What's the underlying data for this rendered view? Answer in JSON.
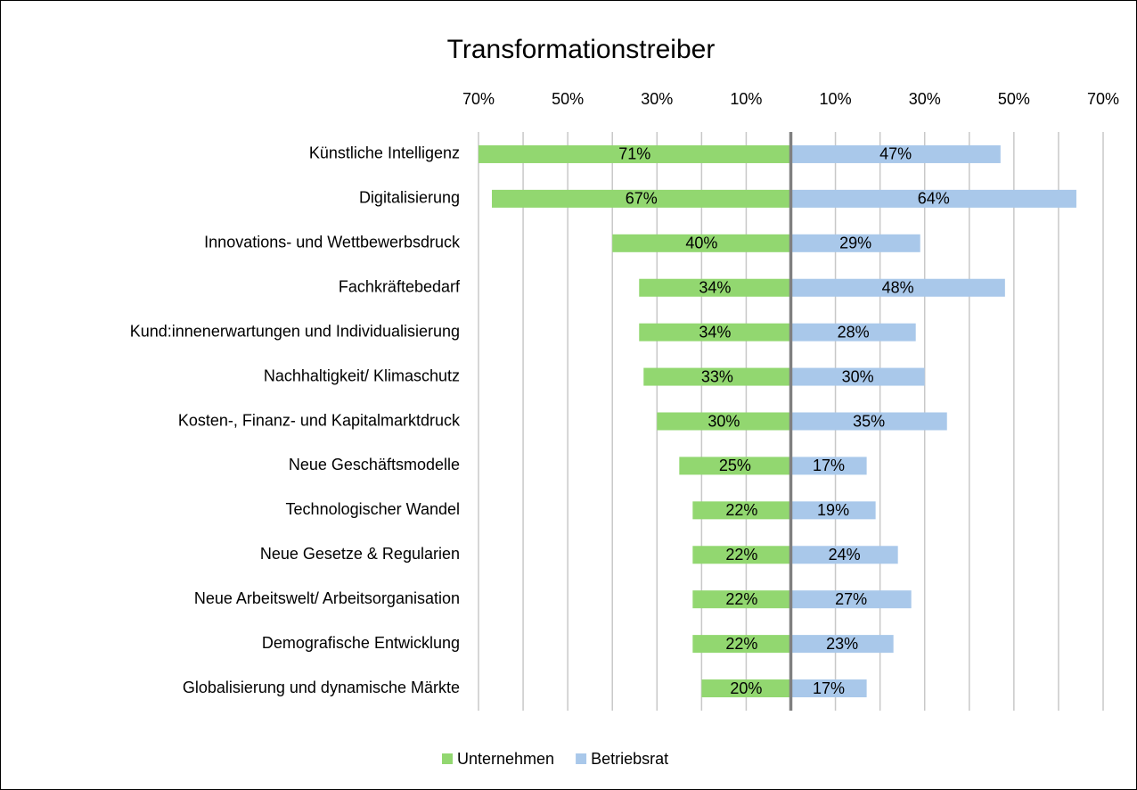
{
  "chart_data": {
    "type": "butterfly",
    "title": "Transformationstreiber",
    "categories": [
      "Künstliche Intelligenz",
      "Digitalisierung",
      "Innovations- und Wettbewerbsdruck",
      "Fachkräftebedarf",
      "Kund:innenerwartungen und Individualisierung",
      "Nachhaltigkeit/ Klimaschutz",
      "Kosten-, Finanz- und Kapitalmarktdruck",
      "Neue Geschäftsmodelle",
      "Technologischer Wandel ",
      "Neue Gesetze & Regularien",
      "Neue Arbeitswelt/ Arbeitsorganisation",
      "Demografische Entwicklung",
      "Globalisierung und dynamische Märkte"
    ],
    "series": [
      {
        "name": "Unternehmen",
        "color": "#92d770",
        "values": [
          -71,
          -67,
          -40,
          -34,
          -34,
          -33,
          -30,
          -25,
          -22,
          -22,
          -22,
          -22,
          -20
        ],
        "value_labels": [
          "71%",
          "67%",
          "40%",
          "34%",
          "34%",
          "33%",
          "30%",
          "25%",
          "22%",
          "22%",
          "22%",
          "22%",
          "20%"
        ]
      },
      {
        "name": "Betriebsrat",
        "color": "#a9c8ea",
        "values": [
          47,
          64,
          29,
          48,
          28,
          30,
          35,
          17,
          19,
          24,
          27,
          23,
          17
        ],
        "value_labels": [
          "47%",
          "64%",
          "29%",
          "48%",
          "28%",
          "30%",
          "35%",
          "17%",
          "19%",
          "24%",
          "27%",
          "23%",
          "17%"
        ]
      }
    ],
    "xlim": [
      -70,
      70
    ],
    "xticks": [
      {
        "value": -70,
        "label": "70%"
      },
      {
        "value": -50,
        "label": "50%"
      },
      {
        "value": -30,
        "label": "30%"
      },
      {
        "value": -10,
        "label": "10%"
      },
      {
        "value": 10,
        "label": "10%"
      },
      {
        "value": 30,
        "label": "30%"
      },
      {
        "value": 50,
        "label": "50%"
      },
      {
        "value": 70,
        "label": "70%"
      }
    ],
    "xgrid_minor": [
      -60,
      -40,
      -20,
      20,
      40,
      60
    ],
    "grid": true,
    "legend": "bottom"
  }
}
